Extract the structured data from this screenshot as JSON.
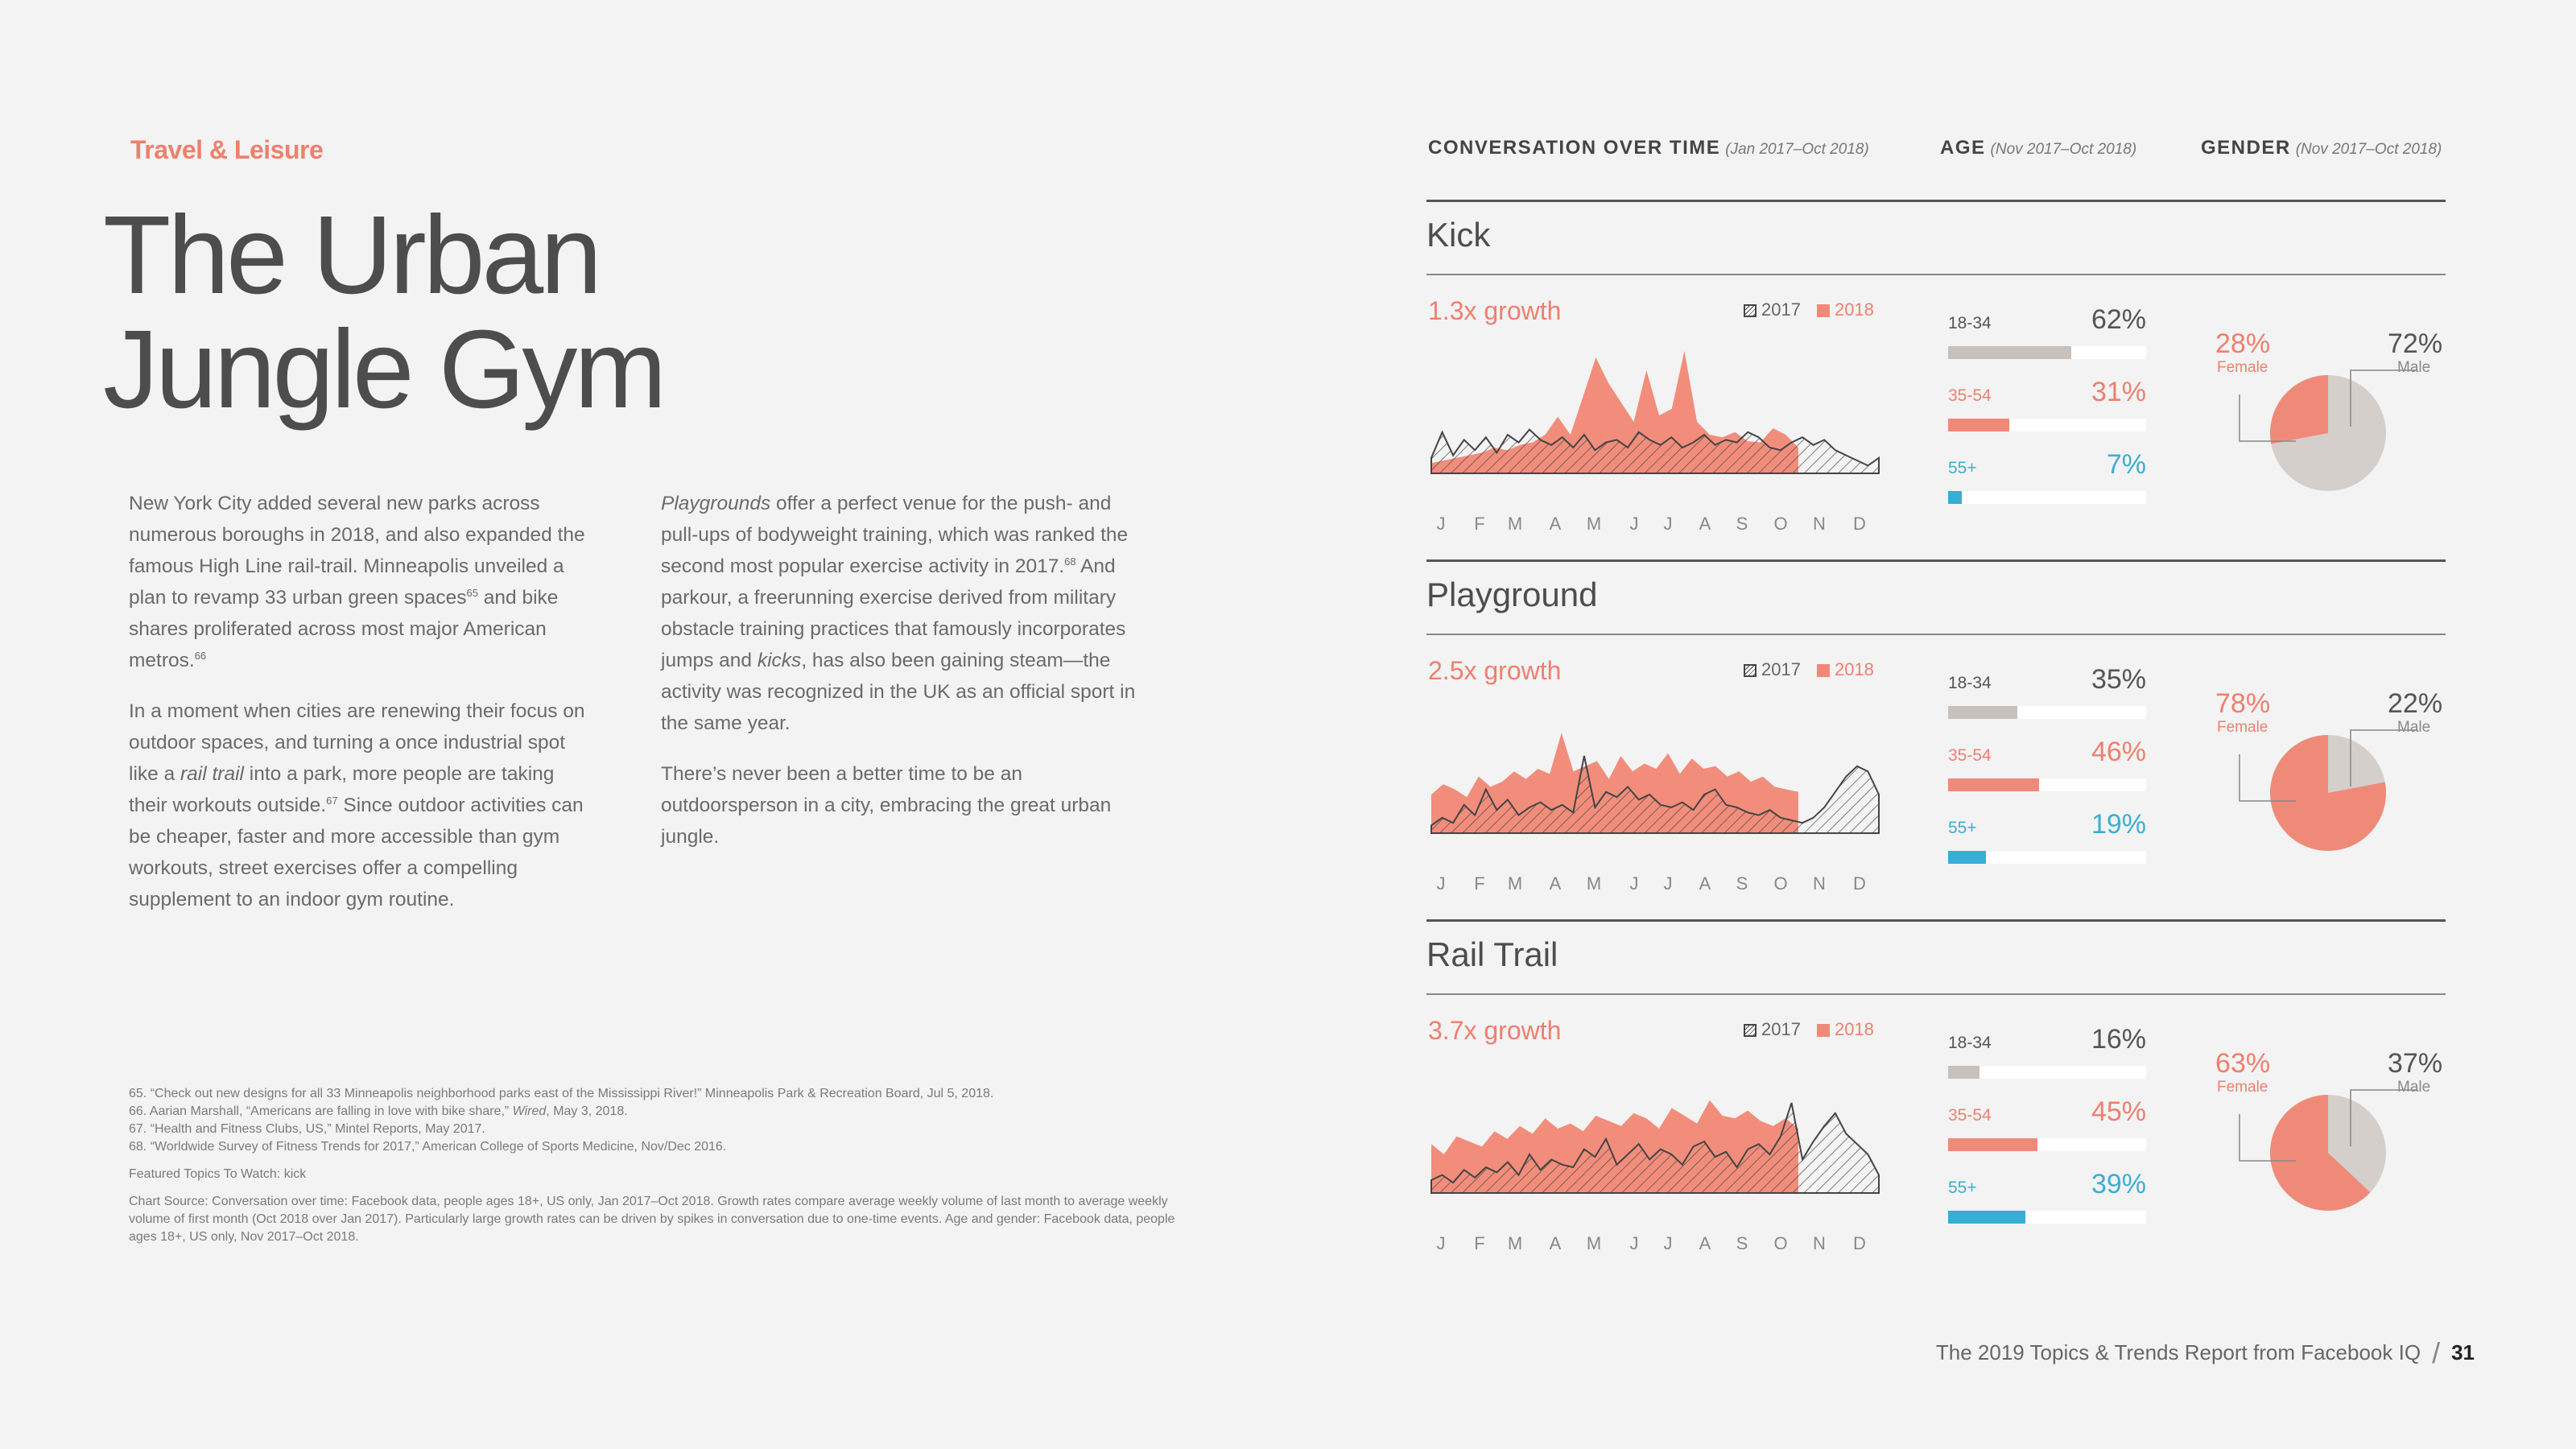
{
  "category": "Travel & Leisure",
  "title": "The Urban Jungle Gym",
  "column1": [
    "New York City added several new parks across numerous boroughs in 2018, and also expanded the famous High Line rail-trail. Minneapolis unveiled a plan to revamp 33 urban green spaces<sup>65</sup> and bike shares proliferated across most major American metros.<sup>66</sup>",
    "In a moment when cities are renewing their focus on outdoor spaces, and turning a once industrial spot like a <i>rail trail</i> into a park, more people are taking their workouts outside.<sup>67</sup> Since outdoor activities can be cheaper, faster and more accessible than gym workouts, street exercises offer a compelling supplement to an indoor gym routine."
  ],
  "column2": [
    "<i>Playgrounds</i> offer a perfect venue for the push- and pull-ups of bodyweight training, which was ranked the second most popular exercise activity in 2017.<sup>68</sup> And parkour, a freerunning exercise derived from military obstacle training practices that famously incorporates jumps and <i>kicks</i>, has also been gaining steam—the activity was recognized in the UK as an official sport in the same year.",
    "There’s never been a better time to be an outdoorsperson in a city, embracing the great urban jungle."
  ],
  "footnotes": [
    "65. “Check out new designs for all 33 Minneapolis neighborhood parks east of the Mississippi River!” Minneapolis Park & Recreation Board, Jul 5, 2018.",
    "66. Aarian Marshall, “Americans are falling in love with bike share,” <i>Wired</i>, May 3, 2018.",
    "67. “Health and Fitness Clubs, US,” Mintel Reports, May 2017.",
    "68. “Worldwide Survey of Fitness Trends for 2017,” American College of Sports Medicine, Nov/Dec 2016."
  ],
  "featured_topics": "Featured Topics To Watch: kick",
  "chart_source": "Chart Source: Conversation over time: Facebook data, people ages 18+, US only, Jan 2017–Oct 2018. Growth rates compare average weekly volume of last month to average weekly volume of first month (Oct 2018 over Jan 2017). Particularly large growth rates can be driven by spikes in conversation due to one-time events. Age and gender: Facebook data, people ages 18+, US only, Nov 2017–Oct 2018.",
  "headers": {
    "conversation": "CONVERSATION OVER TIME",
    "conversation_range": "(Jan 2017–Oct 2018)",
    "age": "AGE",
    "age_range": "(Nov 2017–Oct 2018)",
    "gender": "GENDER",
    "gender_range": "(Nov 2017–Oct 2018)"
  },
  "legend": {
    "y2017": "2017",
    "y2018": "2018"
  },
  "months": [
    "J",
    "F",
    "M",
    "A",
    "M",
    "J",
    "J",
    "A",
    "S",
    "O",
    "N",
    "D"
  ],
  "colors": {
    "coral": "#f08a78",
    "gray": "#c8c0bb",
    "blue": "#36aed6",
    "dark": "#444444"
  },
  "sections": [
    {
      "name": "Kick",
      "growth": "1.3x growth",
      "age": [
        {
          "label": "18-34",
          "pct": "62%",
          "value": 0.62
        },
        {
          "label": "35-54",
          "pct": "31%",
          "value": 0.31
        },
        {
          "label": "55+",
          "pct": "7%",
          "value": 0.07
        }
      ],
      "gender": {
        "female_pct": "28%",
        "female_label": "Female",
        "male_pct": "72%",
        "male_label": "Male",
        "female_value": 0.28
      }
    },
    {
      "name": "Playground",
      "growth": "2.5x growth",
      "age": [
        {
          "label": "18-34",
          "pct": "35%",
          "value": 0.35
        },
        {
          "label": "35-54",
          "pct": "46%",
          "value": 0.46
        },
        {
          "label": "55+",
          "pct": "19%",
          "value": 0.19
        }
      ],
      "gender": {
        "female_pct": "78%",
        "female_label": "Female",
        "male_pct": "22%",
        "male_label": "Male",
        "female_value": 0.78
      }
    },
    {
      "name": "Rail Trail",
      "growth": "3.7x growth",
      "age": [
        {
          "label": "18-34",
          "pct": "16%",
          "value": 0.16
        },
        {
          "label": "35-54",
          "pct": "45%",
          "value": 0.45
        },
        {
          "label": "55+",
          "pct": "39%",
          "value": 0.39
        }
      ],
      "gender": {
        "female_pct": "63%",
        "female_label": "Female",
        "male_pct": "37%",
        "male_label": "Male",
        "female_value": 0.63
      }
    }
  ],
  "chart_data": [
    {
      "type": "area",
      "series": [
        {
          "name": "2017",
          "values": [
            12,
            32,
            14,
            26,
            18,
            28,
            16,
            30,
            24,
            34,
            26,
            22,
            28,
            20,
            30,
            18,
            24,
            26,
            20,
            32,
            26,
            22,
            28,
            20,
            24,
            30,
            22,
            26,
            24,
            32,
            28,
            20,
            18,
            24,
            28,
            22,
            26,
            18,
            14,
            10,
            6,
            12
          ]
        },
        {
          "name": "2018",
          "values": [
            8,
            10,
            12,
            14,
            16,
            20,
            18,
            22,
            24,
            30,
            44,
            30,
            60,
            90,
            70,
            55,
            40,
            80,
            45,
            50,
            95,
            40,
            30,
            28,
            32,
            25,
            24,
            35,
            30,
            20
          ]
        }
      ]
    },
    {
      "type": "area",
      "series": [
        {
          "name": "2017",
          "values": [
            6,
            12,
            8,
            22,
            14,
            34,
            18,
            26,
            14,
            20,
            24,
            18,
            22,
            16,
            60,
            20,
            32,
            28,
            36,
            26,
            30,
            22,
            20,
            24,
            18,
            30,
            34,
            22,
            20,
            16,
            14,
            18,
            12,
            10,
            8,
            12,
            20,
            32,
            44,
            52,
            48,
            30
          ]
        },
        {
          "name": "2018",
          "values": [
            30,
            38,
            34,
            28,
            44,
            36,
            40,
            48,
            42,
            50,
            46,
            78,
            48,
            52,
            56,
            42,
            60,
            48,
            54,
            50,
            62,
            46,
            58,
            50,
            52,
            44,
            48,
            40,
            44,
            36,
            34,
            32
          ]
        }
      ]
    },
    {
      "type": "area",
      "series": [
        {
          "name": "2017",
          "values": [
            10,
            14,
            8,
            18,
            12,
            20,
            16,
            24,
            14,
            30,
            18,
            26,
            22,
            20,
            34,
            28,
            42,
            22,
            30,
            38,
            26,
            34,
            30,
            22,
            36,
            40,
            28,
            32,
            20,
            34,
            38,
            30,
            44,
            70,
            26,
            40,
            52,
            62,
            46,
            38,
            30,
            14
          ]
        },
        {
          "name": "2018",
          "values": [
            38,
            30,
            44,
            40,
            36,
            48,
            42,
            52,
            46,
            58,
            50,
            54,
            48,
            60,
            56,
            52,
            62,
            58,
            50,
            66,
            60,
            54,
            72,
            60,
            58,
            64,
            56,
            52,
            58,
            50
          ]
        }
      ]
    }
  ]
}
